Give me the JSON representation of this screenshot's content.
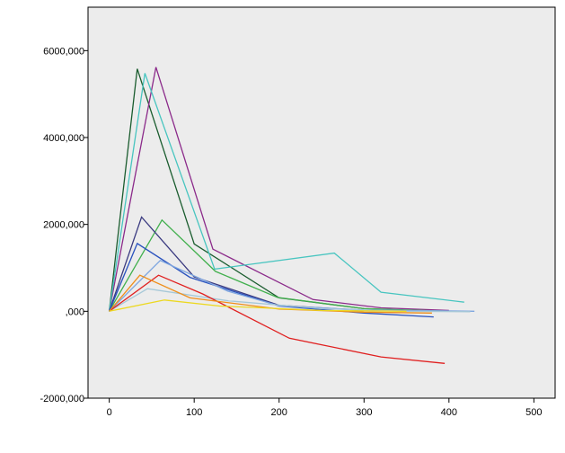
{
  "chart_data": {
    "type": "line",
    "title": "",
    "xlabel": "",
    "ylabel": "",
    "xlim": [
      -25,
      525
    ],
    "ylim": [
      -2000000,
      7000000
    ],
    "x_ticks": [
      0,
      100,
      200,
      300,
      400,
      500
    ],
    "x_tick_labels": [
      "0",
      "100",
      "200",
      "300",
      "400",
      "500"
    ],
    "y_ticks": [
      -2000000,
      0,
      2000000,
      4000000,
      6000000
    ],
    "y_tick_labels": [
      "-2000,000",
      ",000",
      "2000,000",
      "4000,000",
      "6000,000"
    ],
    "grid": false,
    "legend": "none",
    "plot_background": "#ececec",
    "series": [
      {
        "color": "#1a5c2e",
        "points": [
          [
            0,
            0
          ],
          [
            33,
            5580000
          ],
          [
            100,
            1550000
          ],
          [
            200,
            310000
          ],
          [
            300,
            60000
          ],
          [
            380,
            0
          ]
        ]
      },
      {
        "color": "#8b2a8a",
        "points": [
          [
            0,
            0
          ],
          [
            55,
            5620000
          ],
          [
            122,
            1430000
          ],
          [
            240,
            270000
          ],
          [
            320,
            80000
          ],
          [
            400,
            20000
          ]
        ]
      },
      {
        "color": "#48c5c0",
        "points": [
          [
            0,
            0
          ],
          [
            42,
            5480000
          ],
          [
            124,
            970000
          ],
          [
            265,
            1340000
          ],
          [
            320,
            440000
          ],
          [
            418,
            210000
          ]
        ]
      },
      {
        "color": "#42b04e",
        "points": [
          [
            0,
            0
          ],
          [
            62,
            2100000
          ],
          [
            125,
            920000
          ],
          [
            198,
            320000
          ],
          [
            300,
            60000
          ],
          [
            400,
            0
          ]
        ]
      },
      {
        "color": "#3a3a80",
        "points": [
          [
            0,
            0
          ],
          [
            38,
            2170000
          ],
          [
            100,
            790000
          ],
          [
            200,
            140000
          ],
          [
            300,
            20000
          ],
          [
            380,
            0
          ]
        ]
      },
      {
        "color": "#2a52be",
        "points": [
          [
            0,
            0
          ],
          [
            33,
            1560000
          ],
          [
            95,
            780000
          ],
          [
            200,
            120000
          ],
          [
            300,
            -40000
          ],
          [
            382,
            -130000
          ]
        ]
      },
      {
        "color": "#7ea6e0",
        "points": [
          [
            0,
            0
          ],
          [
            60,
            1170000
          ],
          [
            140,
            460000
          ],
          [
            200,
            130000
          ],
          [
            300,
            30000
          ],
          [
            430,
            0
          ]
        ]
      },
      {
        "color": "#a6c8d8",
        "points": [
          [
            0,
            0
          ],
          [
            45,
            520000
          ],
          [
            140,
            240000
          ],
          [
            250,
            60000
          ],
          [
            350,
            0
          ],
          [
            425,
            -10000
          ]
        ]
      },
      {
        "color": "#e02020",
        "points": [
          [
            0,
            0
          ],
          [
            58,
            830000
          ],
          [
            110,
            400000
          ],
          [
            212,
            -620000
          ],
          [
            320,
            -1050000
          ],
          [
            395,
            -1200000
          ]
        ]
      },
      {
        "color": "#ef8e1a",
        "points": [
          [
            0,
            0
          ],
          [
            36,
            830000
          ],
          [
            95,
            310000
          ],
          [
            200,
            50000
          ],
          [
            300,
            -20000
          ],
          [
            380,
            -40000
          ]
        ]
      },
      {
        "color": "#ecd820",
        "points": [
          [
            0,
            0
          ],
          [
            65,
            260000
          ],
          [
            130,
            120000
          ],
          [
            250,
            20000
          ],
          [
            350,
            0
          ]
        ]
      }
    ]
  }
}
